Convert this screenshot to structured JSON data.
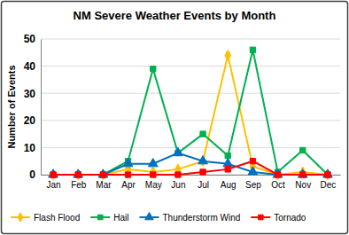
{
  "chart_data": {
    "type": "line",
    "title": "NM Severe Weather Events by Month",
    "y_label": "Number of Events",
    "categories": [
      "Jan",
      "Feb",
      "Mar",
      "Apr",
      "May",
      "Jun",
      "Jul",
      "Aug",
      "Sep",
      "Oct",
      "Nov",
      "Dec"
    ],
    "series": [
      {
        "name": "Flash Flood",
        "color": "#ffc000",
        "marker": "diamond",
        "line_style": "solid",
        "values": [
          0,
          0,
          0,
          2,
          1,
          2,
          5,
          44,
          3,
          0,
          1,
          0
        ]
      },
      {
        "name": "Hail",
        "color": "#00b050",
        "marker": "square",
        "line_style": "solid",
        "values": [
          0,
          0,
          0,
          5,
          39,
          8,
          15,
          7,
          46,
          1,
          9,
          0
        ]
      },
      {
        "name": "Thunderstorm Wind",
        "color": "#0070c0",
        "marker": "triangle",
        "line_style": "solid",
        "values": [
          0,
          0,
          0,
          4,
          4,
          8,
          5,
          4,
          1,
          0,
          0,
          0
        ]
      },
      {
        "name": "Tornado",
        "color": "#ff0000",
        "marker": "square",
        "line_style": "solid",
        "values": [
          0,
          0,
          0,
          0,
          0,
          0,
          1,
          2,
          5,
          0,
          0,
          0
        ]
      }
    ],
    "ylim": [
      0,
      50
    ],
    "yticks": [
      0,
      10,
      20,
      30,
      40,
      50
    ],
    "grid": true,
    "legend": "bottom"
  }
}
